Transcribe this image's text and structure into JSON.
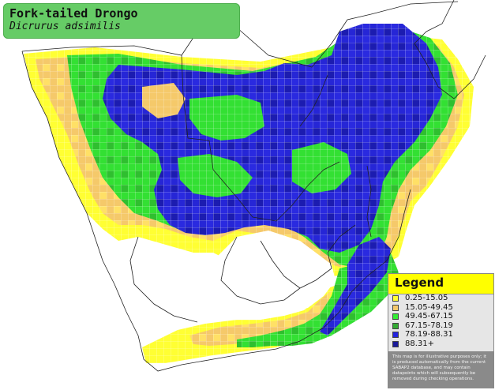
{
  "title": {
    "common_name": "Fork-tailed Drongo",
    "scientific_name": "Dicrurus adsimilis"
  },
  "legend": {
    "title": "Legend",
    "items": [
      {
        "label": "0.25-15.05",
        "color": "#ffff33"
      },
      {
        "label": "15.05-49.45",
        "color": "#f5c96a"
      },
      {
        "label": "49.45-67.15",
        "color": "#33ee33"
      },
      {
        "label": "67.15-78.19",
        "color": "#33aa33"
      },
      {
        "label": "78.19-88.31",
        "color": "#2222dd"
      },
      {
        "label": "88.31+",
        "color": "#1a1a99"
      }
    ],
    "disclaimer": "This map is for illustrative purposes only; it is produced automatically from the current SABAP2 database, and may contain datapoints which will subsequently be removed during checking operations."
  },
  "map": {
    "background": "#ffffff",
    "gridline_color": "#ffffff",
    "border_color": "#222222"
  }
}
